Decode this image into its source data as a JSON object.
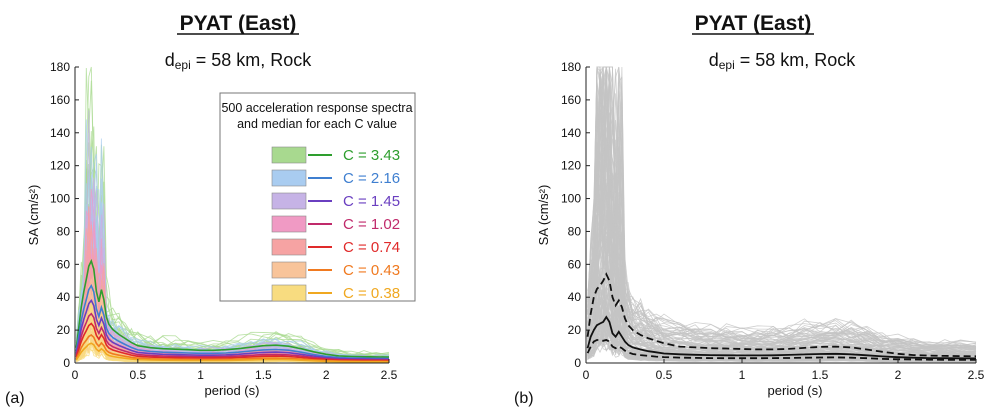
{
  "colors": {
    "gray_spectra": "#c4c4c4",
    "axis": "#222222",
    "median_black": "#111111"
  },
  "chart_data": [
    {
      "panel_label": "(a)",
      "type": "line",
      "title": "PYAT (East)",
      "subtitle": {
        "prefix": "d",
        "sub": "epi",
        "rest": " = 58 km, Rock"
      },
      "xlabel": "period (s)",
      "ylabel": "SA (cm/s²)",
      "xlim": [
        0,
        2.5
      ],
      "ylim": [
        0,
        180
      ],
      "xticks": [
        0,
        0.5,
        1,
        1.5,
        2,
        2.5
      ],
      "xtick_labels": [
        "0",
        "0.5",
        "1",
        "1.5",
        "2",
        "2.5"
      ],
      "yticks": [
        0,
        20,
        40,
        60,
        80,
        100,
        120,
        140,
        160,
        180
      ],
      "grid": false,
      "legend": {
        "title_lines": [
          "500 acceleration response spectra",
          "and median for each C  value"
        ],
        "placement": "center-right",
        "entries": [
          {
            "label": "C = 3.43",
            "line_color": "#2e9e2e",
            "band_color": "#a8d98f"
          },
          {
            "label": "C = 2.16",
            "line_color": "#3f7fd0",
            "band_color": "#a9ccf0"
          },
          {
            "label": "C = 1.45",
            "line_color": "#6a3fc0",
            "band_color": "#c6b3e6"
          },
          {
            "label": "C = 1.02",
            "line_color": "#c02a6b",
            "band_color": "#f09ac4"
          },
          {
            "label": "C = 0.74",
            "line_color": "#e02a2a",
            "band_color": "#f6a3a3"
          },
          {
            "label": "C = 0.43",
            "line_color": "#f07a20",
            "band_color": "#f8c49a"
          },
          {
            "label": "C = 0.38",
            "line_color": "#f0a820",
            "band_color": "#f8dc80"
          }
        ]
      },
      "x": [
        0.01,
        0.03,
        0.05,
        0.07,
        0.09,
        0.11,
        0.13,
        0.15,
        0.17,
        0.19,
        0.21,
        0.23,
        0.25,
        0.27,
        0.3,
        0.35,
        0.4,
        0.45,
        0.5,
        0.6,
        0.7,
        0.8,
        0.9,
        1.0,
        1.1,
        1.2,
        1.3,
        1.4,
        1.5,
        1.6,
        1.7,
        1.8,
        1.9,
        2.0,
        2.1,
        2.2,
        2.3,
        2.4,
        2.5
      ],
      "base_shape": [
        0.15,
        0.35,
        0.55,
        0.7,
        0.82,
        0.95,
        1.0,
        0.92,
        0.7,
        0.6,
        0.72,
        0.62,
        0.45,
        0.38,
        0.33,
        0.28,
        0.24,
        0.2,
        0.17,
        0.15,
        0.14,
        0.135,
        0.13,
        0.125,
        0.125,
        0.13,
        0.14,
        0.155,
        0.17,
        0.175,
        0.165,
        0.14,
        0.11,
        0.085,
        0.07,
        0.065,
        0.062,
        0.06,
        0.058
      ],
      "series": [
        {
          "name": "C = 3.43",
          "median_peak": 62,
          "band_peak": 180
        },
        {
          "name": "C = 2.16",
          "median_peak": 47,
          "band_peak": 180
        },
        {
          "name": "C = 1.45",
          "median_peak": 38,
          "band_peak": 150
        },
        {
          "name": "C = 1.02",
          "median_peak": 30,
          "band_peak": 120
        },
        {
          "name": "C = 0.74",
          "median_peak": 24,
          "band_peak": 100
        },
        {
          "name": "C = 0.43",
          "median_peak": 17,
          "band_peak": 70
        },
        {
          "name": "C = 0.38",
          "median_peak": 12,
          "band_peak": 45
        }
      ]
    },
    {
      "panel_label": "(b)",
      "type": "line",
      "title": "PYAT (East)",
      "subtitle": {
        "prefix": "d",
        "sub": "epi",
        "rest": " = 58 km, Rock"
      },
      "xlabel": "period (s)",
      "ylabel": "SA (cm/s²)",
      "xlim": [
        0,
        2.5
      ],
      "ylim": [
        0,
        180
      ],
      "xticks": [
        0,
        0.5,
        1,
        1.5,
        2,
        2.5
      ],
      "xtick_labels": [
        "0",
        "0.5",
        "1",
        "1.5",
        "2",
        "2.5"
      ],
      "yticks": [
        0,
        20,
        40,
        60,
        80,
        100,
        120,
        140,
        160,
        180
      ],
      "grid": false,
      "x": [
        0.01,
        0.03,
        0.05,
        0.07,
        0.09,
        0.11,
        0.13,
        0.15,
        0.17,
        0.19,
        0.21,
        0.23,
        0.25,
        0.27,
        0.3,
        0.35,
        0.4,
        0.45,
        0.5,
        0.6,
        0.7,
        0.8,
        0.9,
        1.0,
        1.1,
        1.2,
        1.3,
        1.4,
        1.5,
        1.6,
        1.7,
        1.8,
        1.9,
        2.0,
        2.1,
        2.2,
        2.3,
        2.4,
        2.5
      ],
      "series": [
        {
          "name": "",
          "style": "dashed",
          "values": [
            16,
            30,
            40,
            45,
            47,
            50,
            54,
            50,
            40,
            35,
            38,
            34,
            27,
            23,
            20,
            17,
            15,
            13.5,
            12,
            10,
            9.5,
            9,
            8.8,
            8.5,
            8.3,
            8.3,
            8.6,
            9.2,
            9.8,
            10,
            9.5,
            8.2,
            6.8,
            5.6,
            4.8,
            4.5,
            4.3,
            4.2,
            4.1
          ]
        },
        {
          "name": "",
          "style": "solid",
          "values": [
            9,
            16,
            20,
            23,
            24,
            25,
            28,
            25,
            18,
            16,
            19,
            16,
            13,
            11,
            9.5,
            8.2,
            7.2,
            6.5,
            5.8,
            5.3,
            5,
            4.8,
            4.7,
            4.6,
            4.6,
            4.7,
            4.9,
            5.2,
            5.5,
            5.6,
            5.3,
            4.7,
            4,
            3.5,
            3.2,
            3,
            2.9,
            2.85,
            2.8
          ]
        },
        {
          "name": "",
          "style": "dashed",
          "values": [
            6,
            10,
            13,
            14,
            14,
            13.5,
            14,
            13,
            10,
            9,
            10,
            9,
            7.5,
            6.5,
            5.5,
            4.8,
            4.3,
            3.9,
            3.6,
            3.3,
            3.1,
            3,
            2.9,
            2.9,
            2.9,
            2.95,
            3.05,
            3.2,
            3.35,
            3.4,
            3.2,
            2.9,
            2.5,
            2.25,
            2.1,
            2,
            1.95,
            1.9,
            1.9
          ]
        }
      ]
    }
  ]
}
